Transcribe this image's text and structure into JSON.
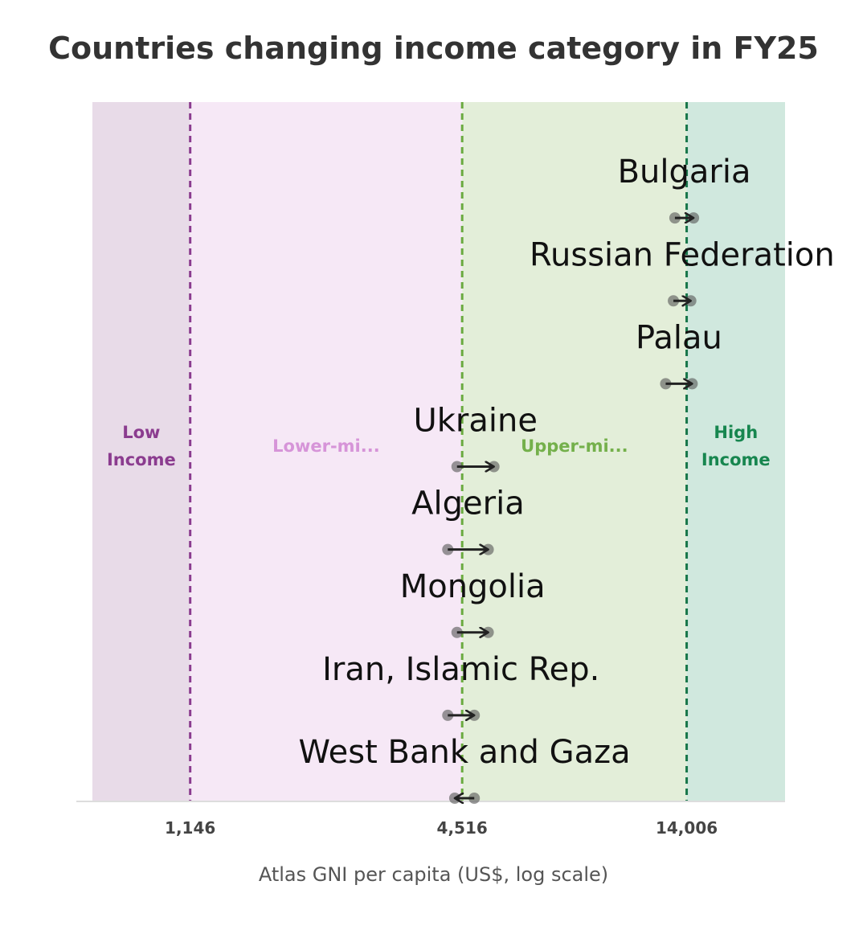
{
  "chart_data": {
    "type": "dumbbell",
    "title": "Countries changing income category in FY25",
    "xlabel": "Atlas GNI per capita (US$, log scale)",
    "x_scale": "log",
    "xlim": [
      700,
      23000
    ],
    "thresholds": [
      {
        "value": 1146,
        "label": "1,146",
        "color": "#8b3c8f"
      },
      {
        "value": 4516,
        "label": "4,516",
        "color": "#6aaa3f"
      },
      {
        "value": 14006,
        "label": "14,006",
        "color": "#17764a"
      }
    ],
    "bands": [
      {
        "label_lines": [
          "Low",
          "Income"
        ],
        "color": "#e8dbe8",
        "text_color": "#8b3c8f"
      },
      {
        "label_lines": [
          "Lower-mi..."
        ],
        "color": "#f6e8f6",
        "text_color": "#d694d8"
      },
      {
        "label_lines": [
          "Upper-mi..."
        ],
        "color": "#e3eed9",
        "text_color": "#74b04b"
      },
      {
        "label_lines": [
          "High",
          "Income"
        ],
        "color": "#d0e8de",
        "text_color": "#17864f"
      }
    ],
    "series": [
      {
        "name": "Bulgaria",
        "from": 13200,
        "to": 14500
      },
      {
        "name": "Russian Federation",
        "from": 13100,
        "to": 14300
      },
      {
        "name": "Palau",
        "from": 12600,
        "to": 14400
      },
      {
        "name": "Ukraine",
        "from": 4400,
        "to": 5300
      },
      {
        "name": "Algeria",
        "from": 4200,
        "to": 5150
      },
      {
        "name": "Mongolia",
        "from": 4400,
        "to": 5150
      },
      {
        "name": "Iran, Islamic Rep.",
        "from": 4200,
        "to": 4800
      },
      {
        "name": "West Bank and Gaza",
        "from": 4800,
        "to": 4350
      }
    ],
    "grid": false,
    "legend": "none"
  }
}
